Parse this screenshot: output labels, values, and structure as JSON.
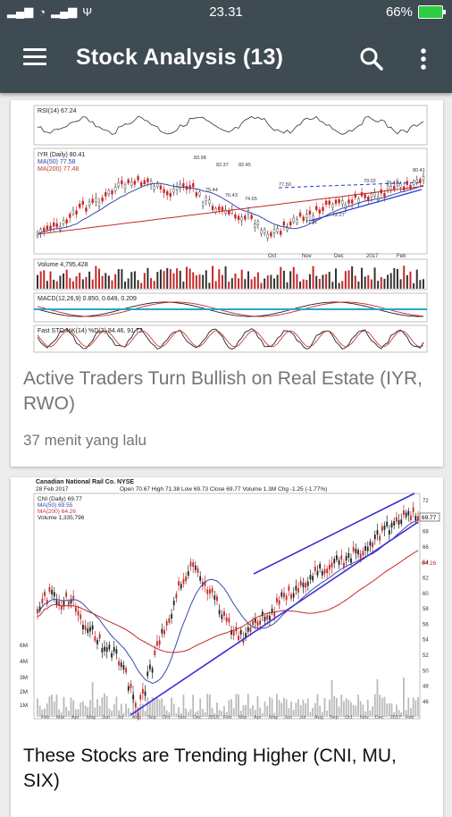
{
  "status": {
    "time": "23.31",
    "battery": "66%"
  },
  "appbar": {
    "title": "Stock Analysis (13)"
  },
  "articles": [
    {
      "title": "Active Traders Turn Bullish on Real Estate (IYR, RWO)",
      "meta": "37 menit yang lalu",
      "chart": {
        "price_header": "IYR (Daily) 80.41",
        "ma50_label": "MA(50) 77.58",
        "ma200_label": "MA(200) 77.48",
        "rsi_label": "RSI(14) 67.24",
        "volume_label": "Volume 4,795,428",
        "macd_label": "MACD(12,26,9) 0.850, 0.649, 0.209",
        "sto_label": "Fast STO %K(14) %D(3) 84.46, 91.72",
        "months": [
          "Oct",
          "Nov",
          "Dec",
          "2017",
          "Feb"
        ],
        "price_labels": [
          "83.98",
          "82.37",
          "82.45",
          "77.50",
          "75.44",
          "76.43",
          "74.65",
          "71.11",
          "72.27",
          "79.02",
          "79.43",
          "80.41"
        ]
      }
    },
    {
      "title": "These Stocks are Trending Higher (CNI, MU, SIX)",
      "chart": {
        "company": "Canadian National Rail Co. NYSE",
        "date": "28 Feb 2017",
        "ohlc": "Open 70.67  High 71.38  Low 69.73  Close 69.77  Volume 1.3M  Chg -1.25 (-1.77%)",
        "price_header": "CNI (Daily) 69.77",
        "ma50_label": "MA(50) 69.55",
        "ma200_label": "MA(200) 64.26",
        "volume_label": "Volume 1,335,796",
        "right_axis": [
          "72",
          "70",
          "68",
          "66",
          "64",
          "62",
          "60",
          "58",
          "56",
          "54",
          "52",
          "50",
          "48",
          "46"
        ],
        "vol_axis": [
          "6M",
          "4M",
          "3M",
          "2M",
          "1M"
        ],
        "last_price": "69.77",
        "ma200_tag": "64.26",
        "months": [
          "Feb",
          "Mar",
          "Apr",
          "May",
          "Jun",
          "Jul",
          "Aug",
          "Sep",
          "Oct",
          "Nov",
          "Dec",
          "2016",
          "Feb",
          "Mar",
          "Apr",
          "May",
          "Jun",
          "Jul",
          "Aug",
          "Sep",
          "Oct",
          "Nov",
          "Dec",
          "2017",
          "Feb"
        ]
      }
    }
  ]
}
